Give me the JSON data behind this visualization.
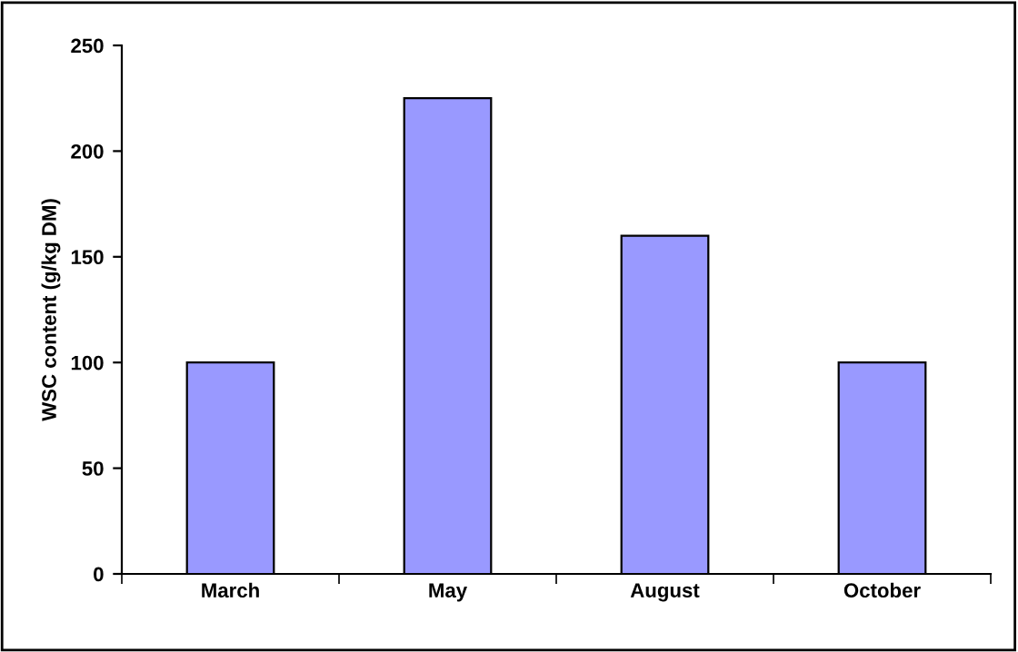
{
  "chart_data": {
    "type": "bar",
    "ylabel": "WSC content (g/kg DM)",
    "categories": [
      "March",
      "May",
      "August",
      "October"
    ],
    "values": [
      100,
      225,
      160,
      100
    ],
    "color": "#9999ff",
    "ylim": [
      0,
      250
    ],
    "yticks": [
      0,
      50,
      100,
      150,
      200,
      250
    ],
    "grid": false
  }
}
